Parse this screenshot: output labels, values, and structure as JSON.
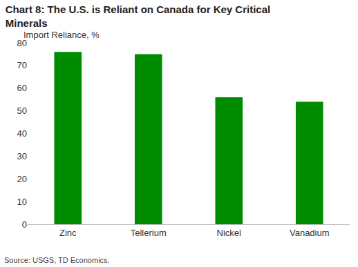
{
  "chart_data": {
    "type": "bar",
    "title": "Chart 8: The U.S. is Reliant on Canada for Key Critical Minerals",
    "y_label": "Import Reliance, %",
    "source": "Source: USGS, TD Economics.",
    "categories": [
      "Zinc",
      "Tellerium",
      "Nickel",
      "Vanadium"
    ],
    "values": [
      76,
      75,
      56,
      54
    ],
    "color": "#008c00",
    "ylim": [
      0,
      80
    ],
    "yticks": [
      0,
      10,
      20,
      30,
      40,
      50,
      60,
      70,
      80
    ],
    "grid": false
  }
}
